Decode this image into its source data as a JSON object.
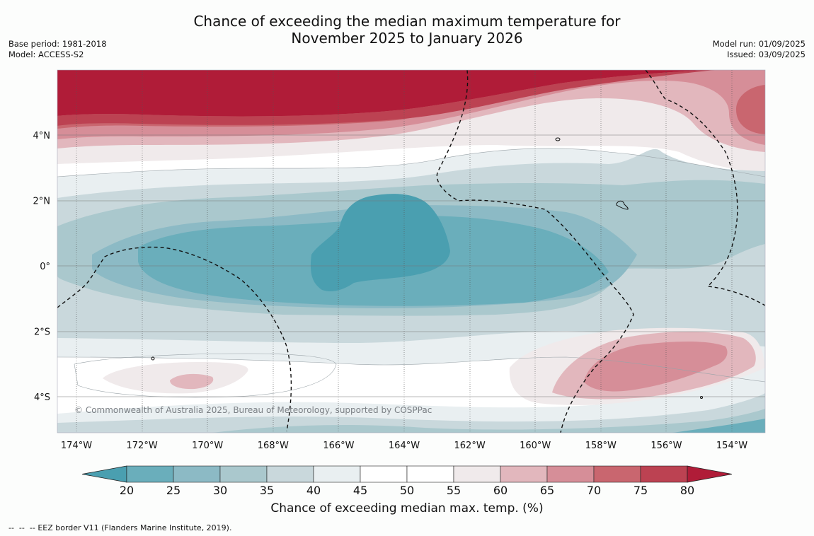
{
  "title_line1": "Chance of exceeding the median maximum temperature for",
  "title_line2": "November 2025 to January 2026",
  "base_period": "Base period: 1981-2018",
  "model": "Model: ACCESS-S2",
  "model_run": "Model run: 01/09/2025",
  "issued": "Issued: 03/09/2025",
  "longitude_ticks": [
    {
      "value": -174,
      "label": "174°W"
    },
    {
      "value": -172,
      "label": "172°W"
    },
    {
      "value": -170,
      "label": "170°W"
    },
    {
      "value": -168,
      "label": "168°W"
    },
    {
      "value": -166,
      "label": "166°W"
    },
    {
      "value": -164,
      "label": "164°W"
    },
    {
      "value": -162,
      "label": "162°W"
    },
    {
      "value": -160,
      "label": "160°W"
    },
    {
      "value": -158,
      "label": "158°W"
    },
    {
      "value": -156,
      "label": "156°W"
    },
    {
      "value": -154,
      "label": "154°W"
    }
  ],
  "latitude_ticks": [
    {
      "value": 4,
      "label": "4°N"
    },
    {
      "value": 2,
      "label": "2°N"
    },
    {
      "value": 0,
      "label": "0°"
    },
    {
      "value": -2,
      "label": "2°S"
    },
    {
      "value": -4,
      "label": "4°S"
    }
  ],
  "colorbar": {
    "title": "Chance of exceeding median max. temp. (%)",
    "ticks": [
      "20",
      "25",
      "30",
      "35",
      "40",
      "45",
      "50",
      "55",
      "60",
      "65",
      "70",
      "75",
      "80"
    ],
    "colors": [
      "#4a9fb0",
      "#6aaebb",
      "#8cbac5",
      "#aac8cd",
      "#c9d8dc",
      "#e9eff1",
      "#ffffff",
      "#ffffff",
      "#f0eaeb",
      "#e2b7bd",
      "#d68e98",
      "#c9666f",
      "#bc4252",
      "#b01c38"
    ]
  },
  "copyright": "© Commonwealth of Australia 2025, Bureau of Meteorology, supported by COSPPac",
  "footer_note": "EEZ border V11 (Flanders Marine Institute, 2019)."
}
